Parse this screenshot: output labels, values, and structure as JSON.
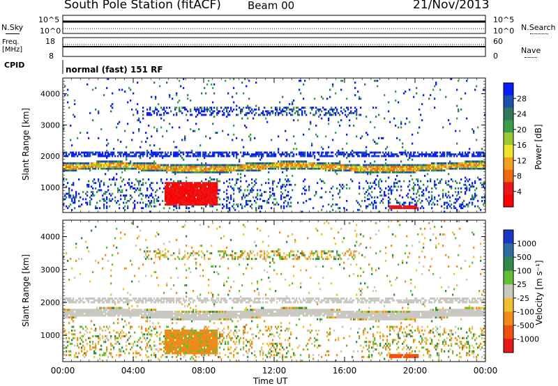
{
  "header": {
    "station": "South Pole Station",
    "mode": "(fitACF)",
    "beam": "Beam 00",
    "date": "21/Nov/2013"
  },
  "nsky_panel": {
    "left_label": "N.Sky",
    "right_label": "N.Search",
    "left_ticks": [
      "10^5",
      "10^0"
    ],
    "right_ticks": [
      "10^5",
      "10^0"
    ]
  },
  "freq_panel": {
    "left_label_1": "Freq.",
    "left_label_2": "[MHz]",
    "right_label": "Nave",
    "left_ticks": [
      "18",
      "8"
    ],
    "right_ticks": [
      "60",
      "0"
    ]
  },
  "cpid_panel": {
    "label": "CPID",
    "text": "normal (fast) 151 RF"
  },
  "chart_data": [
    {
      "type": "heatmap",
      "name": "power",
      "ylabel": "Slant Range [km]",
      "y_ticks": [
        "4000",
        "3000",
        "2000",
        "1000"
      ],
      "ylim": [
        200,
        4500
      ],
      "xlim": [
        0,
        24
      ],
      "colorbar": {
        "label": "Power [dB]",
        "ticks": [
          "28",
          "24",
          "20",
          "16",
          "12",
          "8",
          "4"
        ],
        "colors": [
          "#0a1cff",
          "#1b4fb0",
          "#2f7a5a",
          "#38a04a",
          "#9cc832",
          "#f0e628",
          "#f5a020",
          "#f06a10",
          "#e81818",
          "#ff0000"
        ]
      }
    },
    {
      "type": "heatmap",
      "name": "velocity",
      "ylabel": "Slant Range [km]",
      "y_ticks": [
        "4000",
        "3000",
        "2000",
        "1000"
      ],
      "ylim": [
        200,
        4500
      ],
      "xlim": [
        0,
        24
      ],
      "colorbar": {
        "label": "Velocity [m s⁻¹]",
        "ticks": [
          "1000",
          "500",
          "100",
          "25",
          "-25",
          "-100",
          "-500",
          "-1000"
        ],
        "colors": [
          "#1a38c8",
          "#2b6ea0",
          "#2f8a4a",
          "#60c030",
          "#c8c8c0",
          "#f0c030",
          "#f08a18",
          "#f05010",
          "#e81818"
        ]
      }
    }
  ],
  "x_axis": {
    "ticks": [
      "00:00",
      "04:00",
      "08:00",
      "12:00",
      "16:00",
      "20:00",
      "00:00"
    ],
    "label": "Time UT"
  }
}
